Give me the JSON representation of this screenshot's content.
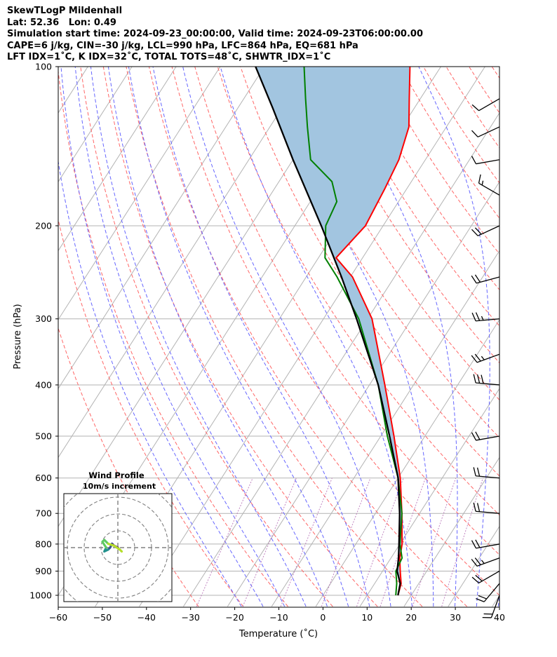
{
  "header": {
    "line1": "SkewTLogP Mildenhall",
    "line2": "Lat: 52.36   Lon: 0.49",
    "line3": "Simulation start time: 2024-09-23_00:00:00, Valid time: 2024-09-23T06:00:00.00",
    "line4": "CAPE=6 j/kg, CIN=-30 j/kg, LCL=990 hPa, LFC=864 hPa, EQ=681 hPa",
    "line5": "LFT IDX=1˚C, K IDX=32˚C, TOTAL TOTS=48˚C, SHWTR_IDX=1˚C"
  },
  "chart_data": {
    "type": "skewt",
    "xlabel": "Temperature (˚C)",
    "ylabel": "Pressure (hPa)",
    "xlim": [
      -60,
      40
    ],
    "ylim": [
      1050,
      100
    ],
    "log_y": true,
    "grid": true,
    "x_ticks": [
      -60,
      -50,
      -40,
      -30,
      -20,
      -10,
      0,
      10,
      20,
      30,
      40
    ],
    "x_tick_labels": [
      "−60",
      "−50",
      "−40",
      "−30",
      "−20",
      "−10",
      "0",
      "10",
      "20",
      "30",
      "40"
    ],
    "y_ticks": [
      1000,
      900,
      800,
      700,
      600,
      500,
      400,
      300,
      200,
      100
    ],
    "y_tick_labels": [
      "1000",
      "900",
      "800",
      "700",
      "600",
      "500",
      "400",
      "300",
      "200",
      "100"
    ],
    "series": [
      {
        "key": "temperature",
        "color": "#ff0000",
        "points": [
          [
            1000,
            17
          ],
          [
            950,
            16
          ],
          [
            900,
            14
          ],
          [
            850,
            12
          ],
          [
            800,
            10.5
          ],
          [
            700,
            6
          ],
          [
            600,
            0.5
          ],
          [
            500,
            -7
          ],
          [
            400,
            -16.5
          ],
          [
            300,
            -29
          ],
          [
            250,
            -39.5
          ],
          [
            230,
            -46
          ],
          [
            200,
            -44
          ],
          [
            170,
            -45
          ],
          [
            150,
            -46
          ],
          [
            130,
            -48.5
          ],
          [
            115,
            -52.5
          ],
          [
            100,
            -57
          ]
        ]
      },
      {
        "key": "dewpoint",
        "color": "#008000",
        "points": [
          [
            1000,
            16.5
          ],
          [
            950,
            15
          ],
          [
            900,
            13
          ],
          [
            850,
            12.5
          ],
          [
            800,
            10
          ],
          [
            700,
            6
          ],
          [
            600,
            0
          ],
          [
            500,
            -8.5
          ],
          [
            400,
            -18
          ],
          [
            300,
            -32
          ],
          [
            250,
            -43
          ],
          [
            230,
            -48.5
          ],
          [
            200,
            -53
          ],
          [
            180,
            -54
          ],
          [
            165,
            -58
          ],
          [
            150,
            -66
          ],
          [
            130,
            -71.5
          ],
          [
            115,
            -76
          ],
          [
            100,
            -81
          ]
        ]
      },
      {
        "key": "parcel",
        "color": "#000000",
        "points": [
          [
            1000,
            17
          ],
          [
            950,
            15.8
          ],
          [
            900,
            13.3
          ],
          [
            850,
            11.7
          ],
          [
            800,
            9.8
          ],
          [
            700,
            5.5
          ],
          [
            600,
            0
          ],
          [
            500,
            -8
          ],
          [
            400,
            -18
          ],
          [
            300,
            -32.5
          ],
          [
            250,
            -42
          ],
          [
            200,
            -54
          ],
          [
            150,
            -70
          ],
          [
            120,
            -82
          ],
          [
            100,
            -92
          ]
        ]
      }
    ],
    "cape_fill_color": "#a2c5e0",
    "dry_adiabat_color": "#ff6666",
    "moist_adiabat_color": "#6666ff",
    "mixing_ratio_color": "#b266b2",
    "isotherm_color": "#b3b3b3",
    "wind_barbs": [
      {
        "p": 1000,
        "dir": 200,
        "spd": 20
      },
      {
        "p": 950,
        "dir": 220,
        "spd": 20
      },
      {
        "p": 900,
        "dir": 240,
        "spd": 20
      },
      {
        "p": 850,
        "dir": 250,
        "spd": 25
      },
      {
        "p": 800,
        "dir": 260,
        "spd": 20
      },
      {
        "p": 700,
        "dir": 275,
        "spd": 20
      },
      {
        "p": 600,
        "dir": 275,
        "spd": 20
      },
      {
        "p": 500,
        "dir": 260,
        "spd": 20
      },
      {
        "p": 400,
        "dir": 275,
        "spd": 30
      },
      {
        "p": 350,
        "dir": 250,
        "spd": 25
      },
      {
        "p": 300,
        "dir": 265,
        "spd": 25
      },
      {
        "p": 250,
        "dir": 255,
        "spd": 20
      },
      {
        "p": 200,
        "dir": 245,
        "spd": 20
      },
      {
        "p": 175,
        "dir": 300,
        "spd": 15
      },
      {
        "p": 150,
        "dir": 260,
        "spd": 10
      },
      {
        "p": 130,
        "dir": 245,
        "spd": 10
      },
      {
        "p": 115,
        "dir": 240,
        "spd": 10
      }
    ],
    "hodograph": {
      "title": "Wind Profile",
      "subtitle": "10m/s increment",
      "rings_ms": [
        10,
        20,
        30,
        40
      ],
      "segments": [
        {
          "color": "#440154",
          "points": [
            [
              0,
              0
            ],
            [
              -2,
              1
            ],
            [
              -3,
              2
            ]
          ]
        },
        {
          "color": "#3b528b",
          "points": [
            [
              -3,
              2
            ],
            [
              -4,
              0
            ],
            [
              -5,
              -1
            ]
          ]
        },
        {
          "color": "#21918c",
          "points": [
            [
              -5,
              -1
            ],
            [
              -7,
              -2
            ],
            [
              -6,
              0
            ]
          ]
        },
        {
          "color": "#5ec962",
          "points": [
            [
              -6,
              0
            ],
            [
              -8,
              3
            ],
            [
              -7,
              4
            ],
            [
              -5,
              2
            ]
          ]
        },
        {
          "color": "#b5de2b",
          "points": [
            [
              -5,
              2
            ],
            [
              -2,
              1
            ],
            [
              1,
              -1
            ],
            [
              2,
              -2
            ]
          ]
        }
      ]
    }
  }
}
